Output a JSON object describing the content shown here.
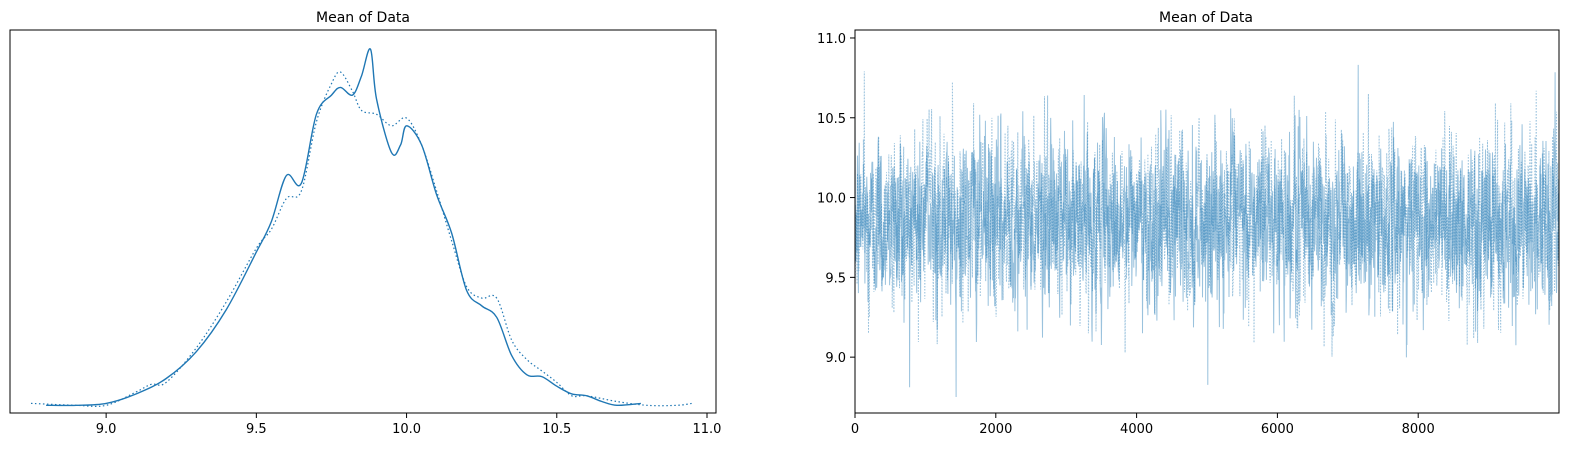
{
  "chart_data": [
    {
      "type": "line",
      "title": "Mean of Data",
      "xlabel": "",
      "ylabel": "",
      "xlim": [
        8.68,
        11.03
      ],
      "ylim": [
        0,
        1.0
      ],
      "x_ticks": [
        "9.0",
        "9.5",
        "10.0",
        "10.5",
        "11.0"
      ],
      "x_tick_values": [
        9.0,
        9.5,
        10.0,
        10.5,
        11.0
      ],
      "y_ticks": [],
      "grid": false,
      "series": [
        {
          "style": "solid",
          "color": "#1f77b4",
          "points": [
            [
              8.8,
              0.02
            ],
            [
              8.9,
              0.02
            ],
            [
              9.0,
              0.025
            ],
            [
              9.1,
              0.05
            ],
            [
              9.2,
              0.09
            ],
            [
              9.3,
              0.16
            ],
            [
              9.4,
              0.27
            ],
            [
              9.5,
              0.42
            ],
            [
              9.55,
              0.5
            ],
            [
              9.6,
              0.62
            ],
            [
              9.65,
              0.6
            ],
            [
              9.7,
              0.78
            ],
            [
              9.75,
              0.83
            ],
            [
              9.78,
              0.85
            ],
            [
              9.82,
              0.83
            ],
            [
              9.85,
              0.88
            ],
            [
              9.88,
              0.95
            ],
            [
              9.9,
              0.82
            ],
            [
              9.95,
              0.68
            ],
            [
              9.98,
              0.7
            ],
            [
              10.0,
              0.75
            ],
            [
              10.05,
              0.7
            ],
            [
              10.1,
              0.57
            ],
            [
              10.15,
              0.47
            ],
            [
              10.2,
              0.32
            ],
            [
              10.25,
              0.28
            ],
            [
              10.3,
              0.25
            ],
            [
              10.35,
              0.15
            ],
            [
              10.4,
              0.1
            ],
            [
              10.45,
              0.095
            ],
            [
              10.5,
              0.07
            ],
            [
              10.55,
              0.05
            ],
            [
              10.6,
              0.045
            ],
            [
              10.65,
              0.03
            ],
            [
              10.7,
              0.02
            ],
            [
              10.78,
              0.025
            ]
          ]
        },
        {
          "style": "dotted",
          "color": "#1f77b4",
          "points": [
            [
              8.75,
              0.025
            ],
            [
              8.9,
              0.02
            ],
            [
              9.0,
              0.02
            ],
            [
              9.1,
              0.055
            ],
            [
              9.15,
              0.075
            ],
            [
              9.2,
              0.08
            ],
            [
              9.3,
              0.17
            ],
            [
              9.4,
              0.29
            ],
            [
              9.5,
              0.43
            ],
            [
              9.55,
              0.48
            ],
            [
              9.6,
              0.56
            ],
            [
              9.65,
              0.58
            ],
            [
              9.7,
              0.76
            ],
            [
              9.75,
              0.86
            ],
            [
              9.78,
              0.89
            ],
            [
              9.82,
              0.84
            ],
            [
              9.85,
              0.79
            ],
            [
              9.9,
              0.78
            ],
            [
              9.95,
              0.75
            ],
            [
              10.0,
              0.77
            ],
            [
              10.05,
              0.7
            ],
            [
              10.1,
              0.58
            ],
            [
              10.15,
              0.45
            ],
            [
              10.2,
              0.33
            ],
            [
              10.25,
              0.3
            ],
            [
              10.3,
              0.3
            ],
            [
              10.35,
              0.19
            ],
            [
              10.4,
              0.14
            ],
            [
              10.45,
              0.11
            ],
            [
              10.5,
              0.08
            ],
            [
              10.55,
              0.045
            ],
            [
              10.6,
              0.045
            ],
            [
              10.7,
              0.03
            ],
            [
              10.8,
              0.02
            ],
            [
              10.9,
              0.02
            ],
            [
              10.95,
              0.025
            ]
          ]
        }
      ]
    },
    {
      "type": "line",
      "title": "Mean of Data",
      "xlabel": "",
      "ylabel": "",
      "xlim": [
        0,
        10000
      ],
      "ylim": [
        8.65,
        11.05
      ],
      "x_ticks": [
        "0",
        "2000",
        "4000",
        "6000",
        "8000"
      ],
      "x_tick_values": [
        0,
        2000,
        4000,
        6000,
        8000
      ],
      "y_ticks": [
        "9.0",
        "9.5",
        "10.0",
        "10.5",
        "11.0"
      ],
      "y_tick_values": [
        9.0,
        9.5,
        10.0,
        10.5,
        11.0
      ],
      "grid": false,
      "trace_mean": 9.85,
      "trace_sd": 0.25,
      "trace_n": 10000,
      "series": [
        {
          "style": "solid",
          "color": "#1f77b4",
          "alpha": 0.45
        },
        {
          "style": "dotted",
          "color": "#1f77b4",
          "alpha": 0.45
        }
      ]
    }
  ]
}
